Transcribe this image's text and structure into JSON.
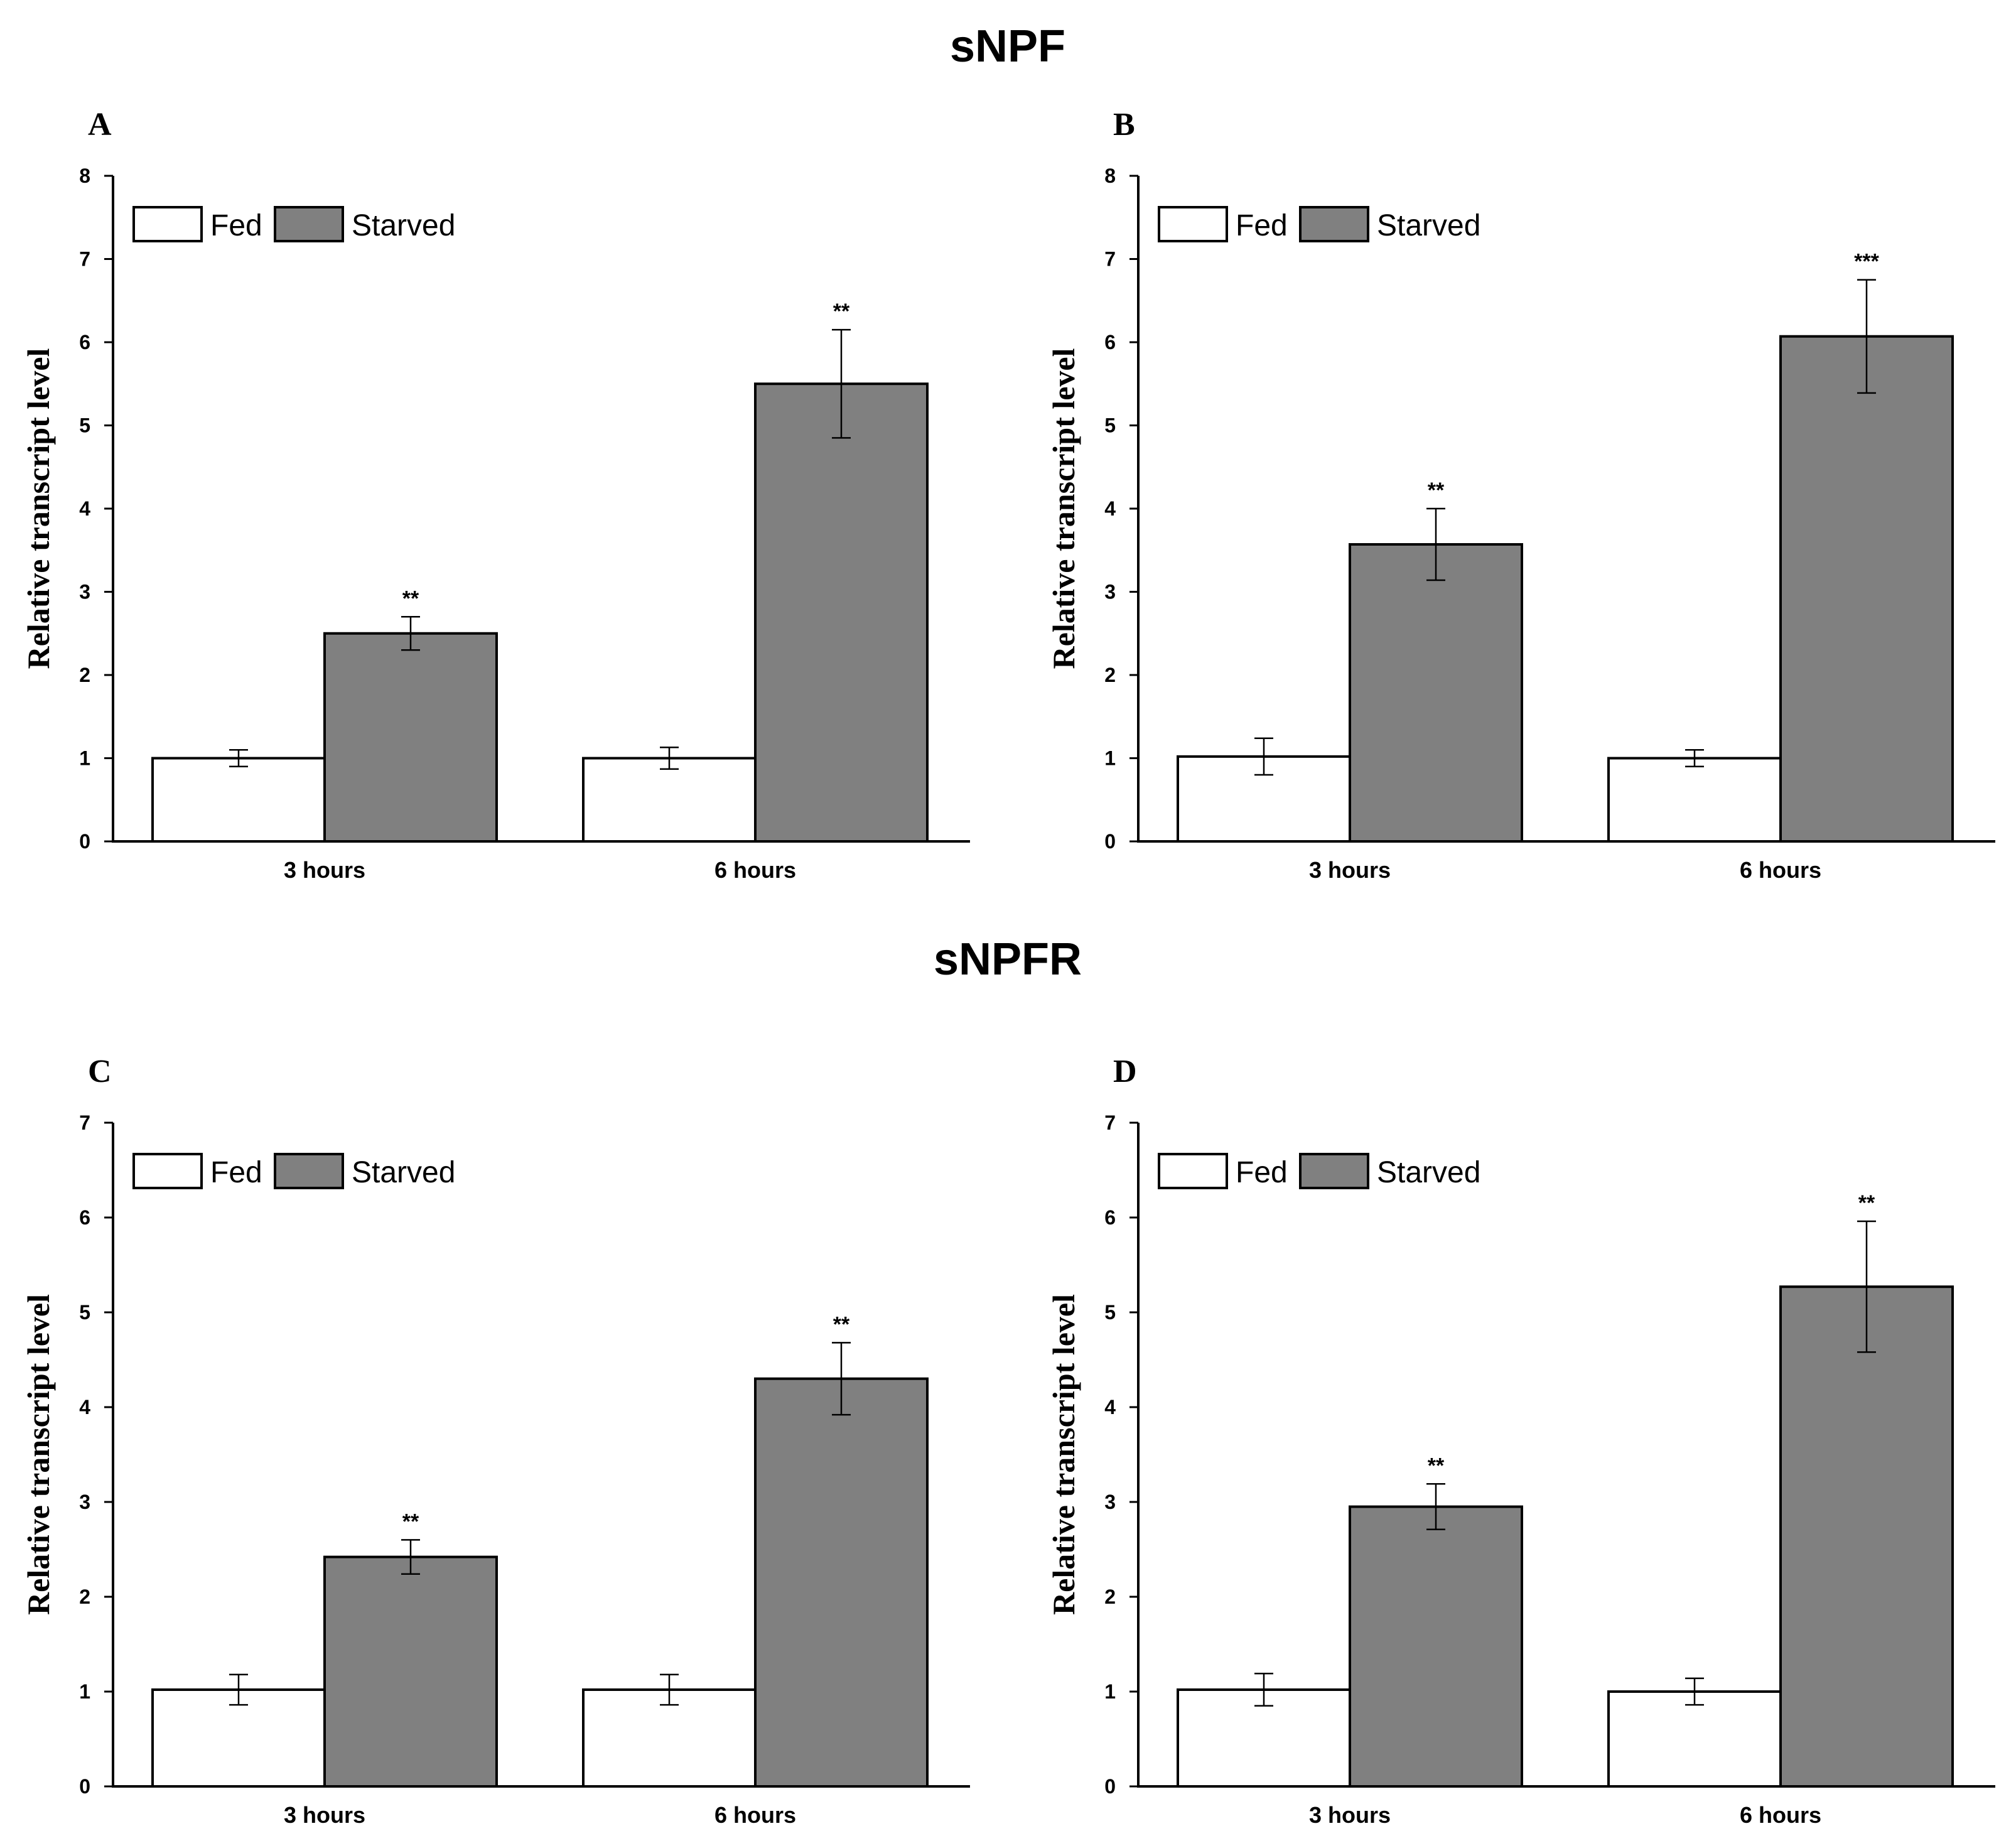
{
  "sections": [
    {
      "title": "sNPF"
    },
    {
      "title": "sNPFR"
    }
  ],
  "colors": {
    "fed": "#ffffff",
    "starved": "#808080",
    "stroke": "#000000"
  },
  "legend": {
    "fed": "Fed",
    "starved": "Starved"
  },
  "chart_data": [
    {
      "type": "bar",
      "panel": "A",
      "section": "sNPF",
      "ylabel": "Relative transcript level",
      "xlabel": "",
      "ylim": [
        0,
        8
      ],
      "yticks": [
        0,
        1,
        2,
        3,
        4,
        5,
        6,
        7,
        8
      ],
      "categories": [
        "3 hours",
        "6 hours"
      ],
      "legend_position": "top-left",
      "series": [
        {
          "name": "Fed",
          "values": [
            1.0,
            1.0
          ],
          "errors": [
            0.1,
            0.13
          ]
        },
        {
          "name": "Starved",
          "values": [
            2.5,
            5.5
          ],
          "errors": [
            0.2,
            0.65
          ]
        }
      ],
      "annotations": [
        {
          "category": 0,
          "series": 1,
          "text": "**"
        },
        {
          "category": 1,
          "series": 1,
          "text": "**"
        }
      ]
    },
    {
      "type": "bar",
      "panel": "B",
      "section": "sNPF",
      "ylabel": "Relative transcript level",
      "xlabel": "",
      "ylim": [
        0,
        8
      ],
      "yticks": [
        0,
        1,
        2,
        3,
        4,
        5,
        6,
        7,
        8
      ],
      "categories": [
        "3 hours",
        "6 hours"
      ],
      "legend_position": "top-left",
      "series": [
        {
          "name": "Fed",
          "values": [
            1.02,
            1.0
          ],
          "errors": [
            0.22,
            0.1
          ]
        },
        {
          "name": "Starved",
          "values": [
            3.57,
            6.07
          ],
          "errors": [
            0.43,
            0.68
          ]
        }
      ],
      "annotations": [
        {
          "category": 0,
          "series": 1,
          "text": "**"
        },
        {
          "category": 1,
          "series": 1,
          "text": "***"
        }
      ]
    },
    {
      "type": "bar",
      "panel": "C",
      "section": "sNPFR",
      "ylabel": "Relative transcript level",
      "xlabel": "",
      "ylim": [
        0,
        7
      ],
      "yticks": [
        0,
        1,
        2,
        3,
        4,
        5,
        6,
        7
      ],
      "categories": [
        "3 hours",
        "6 hours"
      ],
      "legend_position": "top-left",
      "series": [
        {
          "name": "Fed",
          "values": [
            1.02,
            1.02
          ],
          "errors": [
            0.16,
            0.16
          ]
        },
        {
          "name": "Starved",
          "values": [
            2.42,
            4.3
          ],
          "errors": [
            0.18,
            0.38
          ]
        }
      ],
      "annotations": [
        {
          "category": 0,
          "series": 1,
          "text": "**"
        },
        {
          "category": 1,
          "series": 1,
          "text": "**"
        }
      ]
    },
    {
      "type": "bar",
      "panel": "D",
      "section": "sNPFR",
      "ylabel": "Relative transcript level",
      "xlabel": "",
      "ylim": [
        0,
        7
      ],
      "yticks": [
        0,
        1,
        2,
        3,
        4,
        5,
        6,
        7
      ],
      "categories": [
        "3 hours",
        "6 hours"
      ],
      "legend_position": "top-left",
      "series": [
        {
          "name": "Fed",
          "values": [
            1.02,
            1.0
          ],
          "errors": [
            0.17,
            0.14
          ]
        },
        {
          "name": "Starved",
          "values": [
            2.95,
            5.27
          ],
          "errors": [
            0.24,
            0.69
          ]
        }
      ],
      "annotations": [
        {
          "category": 0,
          "series": 1,
          "text": "**"
        },
        {
          "category": 1,
          "series": 1,
          "text": "**"
        }
      ]
    }
  ]
}
